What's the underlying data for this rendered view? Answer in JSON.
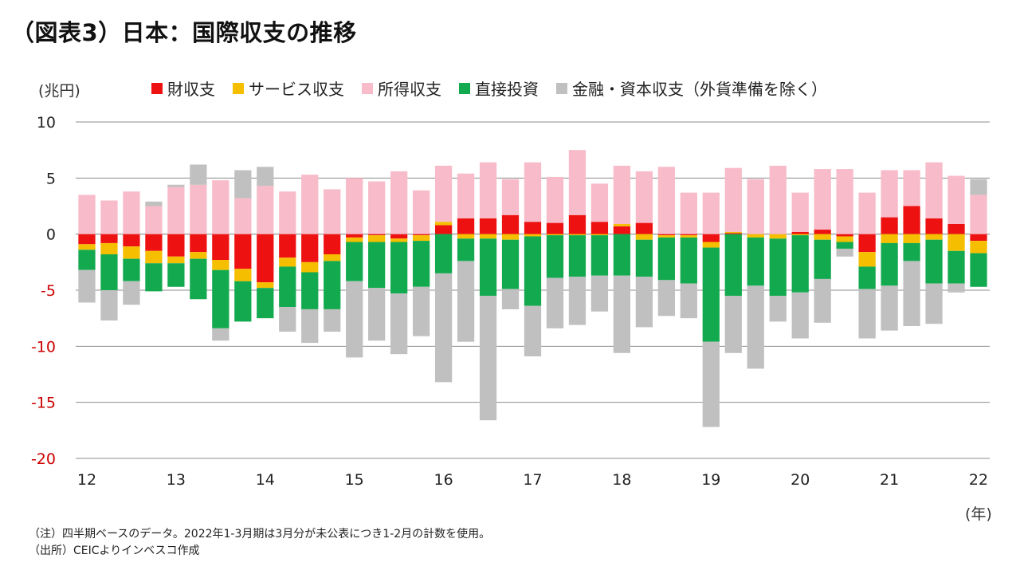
{
  "title": "（図表3）日本：国際収支の推移",
  "colors": {
    "goods": "#ee1111",
    "services": "#f5bf00",
    "income": "#f8bbc9",
    "fdi": "#13aa4f",
    "financial": "#c0c0c0",
    "negative_tick": "#cc0000",
    "grid": "#8c8c8c"
  },
  "legend": [
    {
      "key": "goods",
      "label": "財収支",
      "icon": "red-square-icon"
    },
    {
      "key": "services",
      "label": "サービス収支",
      "icon": "yellow-square-icon"
    },
    {
      "key": "income",
      "label": "所得収支",
      "icon": "pink-square-icon"
    },
    {
      "key": "fdi",
      "label": "直接投資",
      "icon": "green-square-icon"
    },
    {
      "key": "financial",
      "label": "金融・資本収支（外貨準備を除く）",
      "icon": "gray-square-icon"
    }
  ],
  "footnote": "（注）四半期ベースのデータ。2022年1-3月期は3月分が未公表につき1-2月の計数を使用。",
  "source": "（出所）CEICよりインベスコ作成",
  "chart_data": {
    "type": "bar",
    "stacked": true,
    "title": "（図表3）日本：国際収支の推移",
    "ylabel": "(兆円)",
    "xlabel": "(年)",
    "ylim": [
      -20,
      10
    ],
    "yticks": [
      10,
      5,
      0,
      -5,
      -10,
      -15,
      -20
    ],
    "x_tick_labels": [
      "12",
      "13",
      "14",
      "15",
      "16",
      "17",
      "18",
      "19",
      "20",
      "21",
      "22"
    ],
    "categories": [
      "2012Q1",
      "2012Q2",
      "2012Q3",
      "2012Q4",
      "2013Q1",
      "2013Q2",
      "2013Q3",
      "2013Q4",
      "2014Q1",
      "2014Q2",
      "2014Q3",
      "2014Q4",
      "2015Q1",
      "2015Q2",
      "2015Q3",
      "2015Q4",
      "2016Q1",
      "2016Q2",
      "2016Q3",
      "2016Q4",
      "2017Q1",
      "2017Q2",
      "2017Q3",
      "2017Q4",
      "2018Q1",
      "2018Q2",
      "2018Q3",
      "2018Q4",
      "2019Q1",
      "2019Q2",
      "2019Q3",
      "2019Q4",
      "2020Q1",
      "2020Q2",
      "2020Q3",
      "2020Q4",
      "2021Q1",
      "2021Q2",
      "2021Q3",
      "2021Q4",
      "2022Q1"
    ],
    "series": [
      {
        "key": "goods",
        "name": "財収支",
        "values": [
          -0.9,
          -0.8,
          -1.1,
          -1.5,
          -2.0,
          -1.6,
          -2.3,
          -3.1,
          -4.3,
          -2.1,
          -2.5,
          -1.8,
          -0.3,
          -0.1,
          -0.4,
          -0.1,
          0.8,
          1.4,
          1.4,
          1.7,
          1.1,
          1.0,
          1.7,
          1.1,
          0.7,
          1.0,
          -0.1,
          -0.1,
          -0.7,
          0.1,
          0.0,
          0.0,
          0.2,
          0.4,
          -0.2,
          -1.6,
          1.5,
          2.5,
          1.4,
          0.9,
          -0.6
        ]
      },
      {
        "key": "services",
        "name": "サービス収支",
        "values": [
          -0.5,
          -1.0,
          -1.1,
          -1.1,
          -0.6,
          -0.6,
          -0.9,
          -1.1,
          -0.5,
          -0.8,
          -0.9,
          -0.6,
          -0.4,
          -0.6,
          -0.3,
          -0.5,
          0.3,
          -0.4,
          -0.4,
          -0.5,
          -0.2,
          -0.1,
          -0.1,
          -0.1,
          0.2,
          -0.5,
          -0.2,
          -0.2,
          -0.5,
          0.1,
          -0.3,
          -0.4,
          -0.1,
          -0.5,
          -0.5,
          -1.3,
          -0.8,
          -0.8,
          -0.5,
          -1.5,
          -1.1
        ]
      },
      {
        "key": "income",
        "name": "所得収支",
        "values": [
          3.5,
          3.0,
          3.8,
          2.5,
          4.2,
          4.4,
          4.8,
          3.2,
          4.3,
          3.8,
          5.3,
          4.0,
          5.0,
          4.7,
          5.6,
          3.9,
          5.0,
          4.0,
          5.0,
          3.2,
          5.3,
          4.1,
          5.8,
          3.4,
          5.2,
          4.6,
          6.0,
          3.7,
          3.7,
          5.7,
          4.9,
          6.1,
          3.5,
          5.4,
          5.8,
          3.7,
          4.2,
          3.2,
          5.0,
          4.3,
          3.5
        ]
      },
      {
        "key": "fdi",
        "name": "直接投資",
        "values": [
          -1.8,
          -3.2,
          -2.0,
          -2.5,
          -2.1,
          -3.6,
          -5.2,
          -3.6,
          -2.7,
          -3.6,
          -3.3,
          -4.3,
          -3.5,
          -4.1,
          -4.6,
          -4.1,
          -3.5,
          -2.0,
          -5.1,
          -4.4,
          -6.2,
          -3.8,
          -3.7,
          -3.6,
          -3.7,
          -3.3,
          -3.8,
          -4.1,
          -8.4,
          -5.5,
          -4.3,
          -5.1,
          -5.1,
          -3.5,
          -0.6,
          -2.0,
          -3.8,
          -1.6,
          -3.9,
          -2.9,
          -3.0
        ]
      },
      {
        "key": "financial",
        "name": "金融・資本収支（外貨準備を除く）",
        "values": [
          -2.9,
          -2.7,
          -2.1,
          0.4,
          0.2,
          1.8,
          -1.1,
          2.5,
          1.7,
          -2.2,
          -3.0,
          -2.0,
          -6.8,
          -4.7,
          -5.4,
          -4.4,
          -9.7,
          -7.2,
          -11.1,
          -1.8,
          -4.5,
          -4.5,
          -4.3,
          -3.2,
          -6.9,
          -4.5,
          -3.2,
          -3.1,
          -7.6,
          -5.1,
          -7.4,
          -2.3,
          -4.1,
          -3.9,
          -0.7,
          -4.4,
          -4.0,
          -5.8,
          -3.6,
          -0.8,
          1.4
        ]
      }
    ],
    "grid": true,
    "legend_position": "top"
  }
}
